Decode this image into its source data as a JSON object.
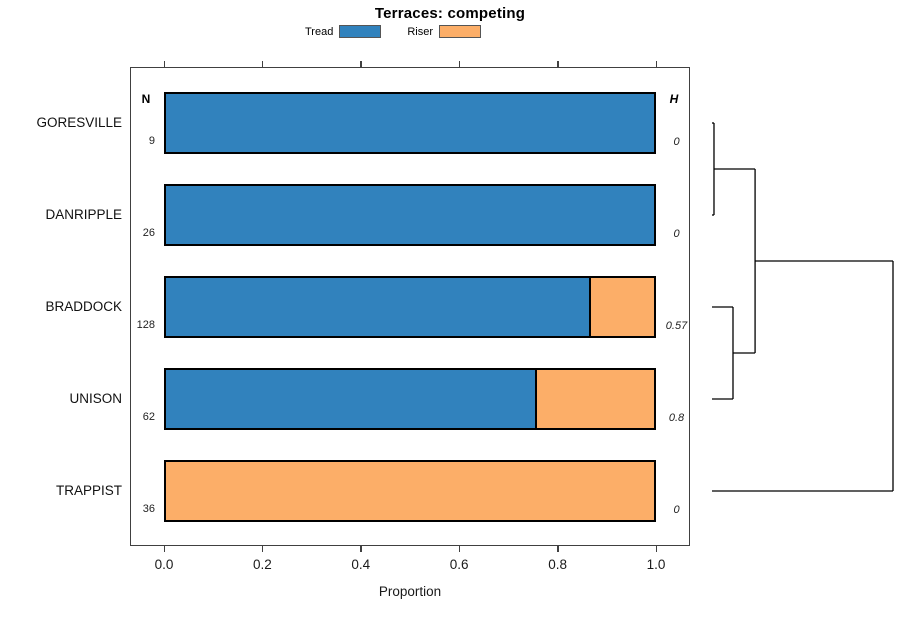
{
  "chart_data": {
    "type": "bar",
    "variant": "horizontal-stacked-proportion",
    "title": "Terraces: competing",
    "xlabel": "Proportion",
    "xlim": [
      0.0,
      1.0
    ],
    "x_ticks": [
      "0.0",
      "0.2",
      "0.4",
      "0.6",
      "0.8",
      "1.0"
    ],
    "grid": false,
    "legend_position": "top",
    "legend": [
      {
        "name": "Tread",
        "color": "#3182BD"
      },
      {
        "name": "Riser",
        "color": "#FCAE68"
      }
    ],
    "columns": {
      "n_header": "N",
      "h_header": "H"
    },
    "categories": [
      "GORESVILLE",
      "DANRIPPLE",
      "BRADDOCK",
      "UNISON",
      "TRAPPIST"
    ],
    "rows": [
      {
        "label": "GORESVILLE",
        "n": "9",
        "tread": 1.0,
        "riser": 0.0,
        "h": "0"
      },
      {
        "label": "DANRIPPLE",
        "n": "26",
        "tread": 1.0,
        "riser": 0.0,
        "h": "0"
      },
      {
        "label": "BRADDOCK",
        "n": "128",
        "tread": 0.87,
        "riser": 0.13,
        "h": "0.57"
      },
      {
        "label": "UNISON",
        "n": "62",
        "tread": 0.76,
        "riser": 0.24,
        "h": "0.8"
      },
      {
        "label": "TRAPPIST",
        "n": "36",
        "tread": 0.0,
        "riser": 1.0,
        "h": "0"
      }
    ],
    "dendrogram": {
      "leaves": [
        "GORESVILLE",
        "DANRIPPLE",
        "BRADDOCK",
        "UNISON",
        "TRAPPIST"
      ],
      "merges": [
        {
          "a": {
            "leaf": 0
          },
          "b": {
            "leaf": 1
          },
          "depth": 0.011
        },
        {
          "a": {
            "leaf": 2
          },
          "b": {
            "leaf": 3
          },
          "depth": 0.116
        },
        {
          "a": {
            "merge": 0
          },
          "b": {
            "merge": 1
          },
          "depth": 0.238
        },
        {
          "a": {
            "merge": 2
          },
          "b": {
            "leaf": 4
          },
          "depth": 1.0
        }
      ]
    }
  },
  "colors": {
    "tread": "#3182BD",
    "riser": "#FCAE68",
    "bar_border": "#000000",
    "box_border": "#404040",
    "dendrogram_line": "#000000"
  }
}
